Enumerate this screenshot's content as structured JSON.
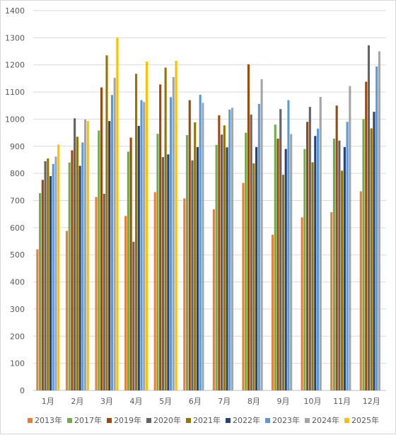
{
  "chart_data": {
    "type": "bar",
    "categories": [
      "1月",
      "2月",
      "3月",
      "4月",
      "5月",
      "6月",
      "7月",
      "8月",
      "9月",
      "10月",
      "11月",
      "12月"
    ],
    "ylim": [
      0,
      1400
    ],
    "yticks": [
      0,
      100,
      200,
      300,
      400,
      500,
      600,
      700,
      800,
      900,
      1000,
      1100,
      1200,
      1300,
      1400
    ],
    "grid": true,
    "legend_position": "bottom",
    "series": [
      {
        "name": "2013年",
        "color": "#ed7d31",
        "values": [
          520,
          588,
          713,
          643,
          731,
          708,
          668,
          765,
          574,
          638,
          657,
          734
        ]
      },
      {
        "name": "2017年",
        "color": "#70ad47",
        "values": [
          727,
          840,
          958,
          880,
          946,
          941,
          905,
          950,
          980,
          890,
          928,
          1000
        ]
      },
      {
        "name": "2019年",
        "color": "#9e480e",
        "values": [
          776,
          885,
          1117,
          932,
          1128,
          1070,
          1014,
          1202,
          928,
          990,
          1050,
          1138
        ]
      },
      {
        "name": "2020年",
        "color": "#636363",
        "values": [
          845,
          1003,
          725,
          548,
          860,
          848,
          943,
          1017,
          1037,
          1045,
          921,
          1272
        ]
      },
      {
        "name": "2021年",
        "color": "#997300",
        "values": [
          855,
          935,
          1235,
          1167,
          1190,
          988,
          977,
          837,
          795,
          841,
          810,
          966
        ]
      },
      {
        "name": "2022年",
        "color": "#264478",
        "values": [
          790,
          828,
          993,
          975,
          870,
          897,
          896,
          897,
          890,
          938,
          897,
          1027
        ]
      },
      {
        "name": "2023年",
        "color": "#5b9bd5",
        "values": [
          835,
          914,
          1089,
          1070,
          1081,
          1090,
          1035,
          1056,
          1070,
          965,
          990,
          1194
        ]
      },
      {
        "name": "2024年",
        "color": "#a5a5a5",
        "values": [
          862,
          999,
          1152,
          1063,
          1155,
          1060,
          1042,
          1147,
          945,
          1082,
          1122,
          1250
        ]
      },
      {
        "name": "2025年",
        "color": "#ffc000",
        "values": [
          906,
          993,
          1300,
          1212,
          1215,
          null,
          null,
          null,
          null,
          null,
          null,
          null
        ]
      }
    ]
  }
}
